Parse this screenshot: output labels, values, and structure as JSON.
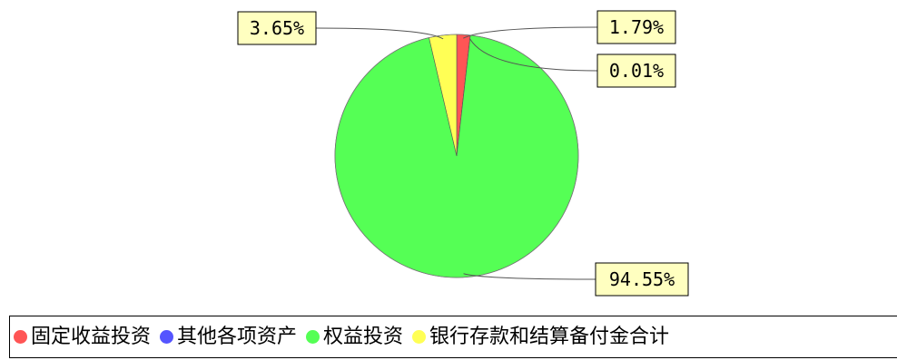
{
  "chart_data": {
    "type": "pie",
    "categories": [
      "固定收益投资",
      "其他各项资产",
      "权益投资",
      "银行存款和结算备付金合计"
    ],
    "values": [
      1.79,
      0.01,
      94.55,
      3.65
    ],
    "labels": [
      "1.79%",
      "0.01%",
      "94.55%",
      "3.65%"
    ],
    "colors": [
      "#ff5555",
      "#5555ff",
      "#55ff55",
      "#ffff55"
    ],
    "label_box_fill": "#ffffc0",
    "legend_position": "bottom"
  },
  "legend": {
    "items": [
      {
        "label": "固定收益投资",
        "color": "#ff5555"
      },
      {
        "label": "其他各项资产",
        "color": "#5555ff"
      },
      {
        "label": "权益投资",
        "color": "#55ff55"
      },
      {
        "label": "银行存款和结算备付金合计",
        "color": "#ffff55"
      }
    ]
  }
}
